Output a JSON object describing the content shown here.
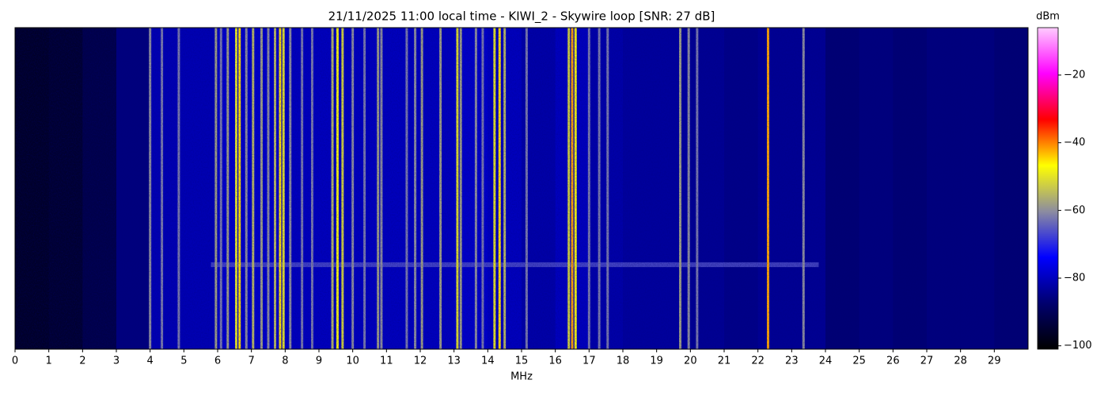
{
  "chart_data": {
    "type": "waterfall",
    "title": "21/11/2025 11:00 local time - KIWI_2 - Skywire loop [SNR: 27 dB]",
    "x_label": "MHz",
    "colorbar_label": "dBm",
    "xlim": [
      0,
      30
    ],
    "xticks": [
      0,
      1,
      2,
      3,
      4,
      5,
      6,
      7,
      8,
      9,
      10,
      11,
      12,
      13,
      14,
      15,
      16,
      17,
      18,
      19,
      20,
      21,
      22,
      23,
      24,
      25,
      26,
      27,
      28,
      29
    ],
    "clim": [
      -101,
      -6
    ],
    "cticks": [
      {
        "value": -100,
        "label": "−100"
      },
      {
        "value": -80,
        "label": "−80"
      },
      {
        "value": -60,
        "label": "−60"
      },
      {
        "value": -40,
        "label": "−40"
      },
      {
        "value": -20,
        "label": "−20"
      }
    ],
    "colorscale": [
      "#000000",
      "#00006e",
      "#0000ff",
      "#8c8ca0",
      "#ffff00",
      "#ff0000",
      "#ff00ff",
      "#ffccff"
    ],
    "noise_floor": {
      "x": [
        0.5,
        1.5,
        2.5,
        3.5,
        4.5,
        5.5,
        6.5,
        7.5,
        8.5,
        9.5,
        10.5,
        11.5,
        12.5,
        13.5,
        14.5,
        15.5,
        16.5,
        17.5,
        18.5,
        19.5,
        20.5,
        21.5,
        22.5,
        23.5,
        24.5,
        25.5,
        26.5,
        27.5,
        28.5,
        29.5
      ],
      "values": [
        -96,
        -95,
        -92,
        -86,
        -81,
        -81,
        -79,
        -79,
        -80,
        -80,
        -80,
        -80,
        -80,
        -79,
        -80,
        -82,
        -80,
        -82,
        -83,
        -83,
        -84,
        -85,
        -84,
        -84,
        -87,
        -86,
        -87,
        -86,
        -86,
        -87
      ]
    },
    "signals": {
      "x": [
        4.0,
        4.35,
        4.85,
        5.95,
        6.1,
        6.3,
        6.55,
        6.65,
        6.85,
        7.05,
        7.3,
        7.5,
        7.7,
        7.85,
        7.95,
        8.15,
        8.5,
        8.8,
        9.4,
        9.55,
        9.7,
        10.0,
        10.35,
        10.75,
        10.85,
        11.6,
        11.85,
        12.05,
        12.6,
        13.1,
        13.2,
        13.65,
        13.85,
        14.2,
        14.35,
        14.5,
        15.15,
        16.4,
        16.5,
        16.6,
        17.0,
        17.3,
        17.55,
        19.7,
        19.95,
        20.2,
        22.3,
        23.35
      ],
      "values": [
        -60,
        -62,
        -62,
        -58,
        -62,
        -58,
        -50,
        -45,
        -60,
        -55,
        -58,
        -60,
        -55,
        -45,
        -50,
        -60,
        -62,
        -62,
        -55,
        -48,
        -52,
        -60,
        -62,
        -58,
        -60,
        -62,
        -60,
        -58,
        -58,
        -50,
        -58,
        -60,
        -62,
        -50,
        -45,
        -55,
        -62,
        -52,
        -42,
        -48,
        -62,
        -62,
        -62,
        -58,
        -60,
        -62,
        -42,
        -60
      ]
    },
    "band": {
      "x": [
        5.8,
        23.8
      ],
      "value": -66
    }
  }
}
